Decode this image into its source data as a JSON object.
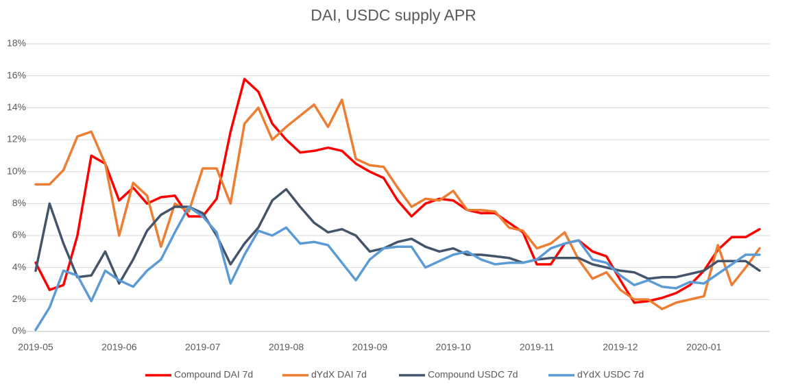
{
  "chart_data": {
    "type": "line",
    "title": "DAI, USDC supply APR",
    "categories": [
      "2019-05",
      null,
      null,
      null,
      null,
      null,
      "2019-06",
      null,
      null,
      null,
      null,
      null,
      "2019-07",
      null,
      null,
      null,
      null,
      null,
      "2019-08",
      null,
      null,
      null,
      null,
      null,
      "2019-09",
      null,
      null,
      null,
      null,
      null,
      "2019-10",
      null,
      null,
      null,
      null,
      null,
      "2019-11",
      null,
      null,
      null,
      null,
      null,
      "2019-12",
      null,
      null,
      null,
      null,
      null,
      "2020-01",
      null,
      null,
      null,
      null
    ],
    "series": [
      {
        "name": "Compound DAI 7d",
        "color": "#ff0000",
        "values": [
          4.3,
          2.6,
          2.9,
          6,
          11,
          10.5,
          8.2,
          9,
          8,
          8.4,
          8.5,
          7.2,
          7.2,
          8.3,
          12.5,
          15.8,
          15,
          13,
          12,
          11.2,
          11.3,
          11.5,
          11.3,
          10.5,
          10,
          9.6,
          8.2,
          7.2,
          8,
          8.3,
          8.2,
          7.6,
          7.4,
          7.4,
          6.8,
          6.2,
          4.2,
          4.2,
          5.5,
          5.7,
          5.0,
          4.7,
          3.2,
          1.8,
          1.9,
          2.1,
          2.4,
          2.9,
          3.8,
          5.1,
          5.9,
          5.9,
          6.4
        ]
      },
      {
        "name": "dYdX DAI 7d",
        "color": "#ed7d31",
        "values": [
          9.2,
          9.2,
          10.1,
          12.2,
          12.5,
          10.5,
          6.0,
          9.3,
          8.5,
          5.3,
          8.0,
          7.5,
          10.2,
          10.2,
          8,
          13,
          14,
          12,
          12.8,
          13.5,
          14.2,
          12.8,
          14.5,
          10.8,
          10.4,
          10.3,
          9,
          7.8,
          8.3,
          8.2,
          8.8,
          7.6,
          7.6,
          7.5,
          6.5,
          6.3,
          5.2,
          5.5,
          6.2,
          4.5,
          3.3,
          3.7,
          2.6,
          2.0,
          2.0,
          1.4,
          1.8,
          2.0,
          2.2,
          5.4,
          2.9,
          4.0,
          5.2
        ]
      },
      {
        "name": "Compound USDC 7d",
        "color": "#44546a",
        "values": [
          3.8,
          8,
          5.5,
          3.4,
          3.5,
          5.0,
          3,
          4.5,
          6.3,
          7.3,
          7.8,
          7.8,
          7.4,
          6.0,
          4.2,
          5.5,
          6.5,
          8.2,
          8.9,
          7.8,
          6.8,
          6.2,
          6.4,
          6.0,
          5.0,
          5.2,
          5.6,
          5.8,
          5.3,
          5.0,
          5.2,
          4.8,
          4.8,
          4.7,
          4.6,
          4.3,
          4.5,
          4.6,
          4.6,
          4.6,
          4.2,
          4.0,
          3.8,
          3.7,
          3.3,
          3.4,
          3.4,
          3.6,
          3.8,
          4.4,
          4.4,
          4.4,
          3.8
        ]
      },
      {
        "name": "dYdX USDC 7d",
        "color": "#5b9bd5",
        "values": [
          0.1,
          1.5,
          3.8,
          3.5,
          1.9,
          3.8,
          3.2,
          2.8,
          3.8,
          4.5,
          6.2,
          7.8,
          7.2,
          6.2,
          3.0,
          4.8,
          6.3,
          6.0,
          6.5,
          5.5,
          5.6,
          5.4,
          4.3,
          3.2,
          4.5,
          5.2,
          5.3,
          5.3,
          4.0,
          4.4,
          4.8,
          5.0,
          4.5,
          4.2,
          4.3,
          4.3,
          4.5,
          5.2,
          5.5,
          5.7,
          4.5,
          4.3,
          3.5,
          2.9,
          3.2,
          2.8,
          2.7,
          3.1,
          3.0,
          3.6,
          4.2,
          4.8,
          4.8
        ]
      }
    ],
    "ylim": [
      0,
      18
    ],
    "yticks": [
      {
        "value": 0,
        "label": "0%"
      },
      {
        "value": 2,
        "label": "2%"
      },
      {
        "value": 4,
        "label": "4%"
      },
      {
        "value": 6,
        "label": "6%"
      },
      {
        "value": 8,
        "label": "8%"
      },
      {
        "value": 10,
        "label": "10%"
      },
      {
        "value": 12,
        "label": "12%"
      },
      {
        "value": 14,
        "label": "14%"
      },
      {
        "value": 16,
        "label": "16%"
      },
      {
        "value": 18,
        "label": "18%"
      }
    ],
    "grid": true
  }
}
